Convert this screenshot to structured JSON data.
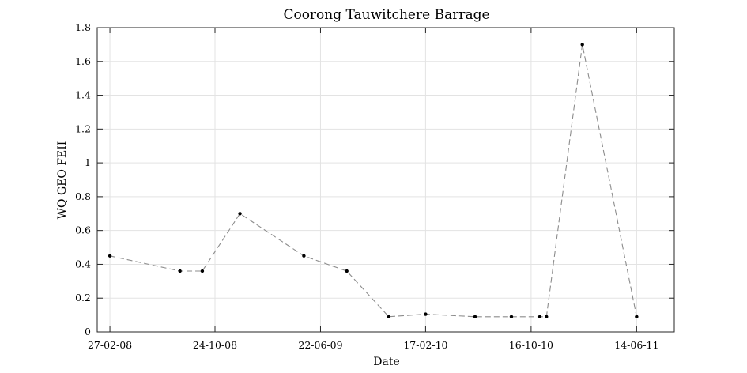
{
  "chart_data": {
    "type": "line",
    "title": "Coorong Tauwitchere Barrage",
    "xlabel": "Date",
    "ylabel": "WQ GEO FEII",
    "xlim": [
      "2008-01-29",
      "2011-09-08"
    ],
    "ylim": [
      0,
      1.8
    ],
    "x_ticks": [
      "2008-02-27",
      "2008-10-24",
      "2009-06-22",
      "2010-02-17",
      "2010-10-16",
      "2011-06-14"
    ],
    "x_tick_labels": [
      "27-02-08",
      "24-10-08",
      "22-06-09",
      "17-02-10",
      "16-10-10",
      "14-06-11"
    ],
    "y_ticks": [
      0,
      0.2,
      0.4,
      0.6,
      0.8,
      1,
      1.2,
      1.4,
      1.6,
      1.8
    ],
    "y_tick_labels": [
      "0",
      "0.2",
      "0.4",
      "0.6",
      "0.8",
      "1",
      "1.2",
      "1.4",
      "1.6",
      "1.8"
    ],
    "grid": true,
    "line_style": "dashed",
    "line_color": "#8c8c8c",
    "marker_color": "#000000",
    "series": [
      {
        "x": [
          "2008-02-27",
          "2008-08-05",
          "2008-09-25",
          "2008-12-20",
          "2009-05-15",
          "2009-08-21",
          "2009-11-25",
          "2010-02-17",
          "2010-06-10",
          "2010-09-01",
          "2010-11-05",
          "2010-11-20",
          "2011-02-10",
          "2011-06-14"
        ],
        "y": [
          0.45,
          0.36,
          0.36,
          0.7,
          0.45,
          0.36,
          0.09,
          0.105,
          0.09,
          0.09,
          0.09,
          0.09,
          1.7,
          0.09
        ]
      }
    ]
  }
}
